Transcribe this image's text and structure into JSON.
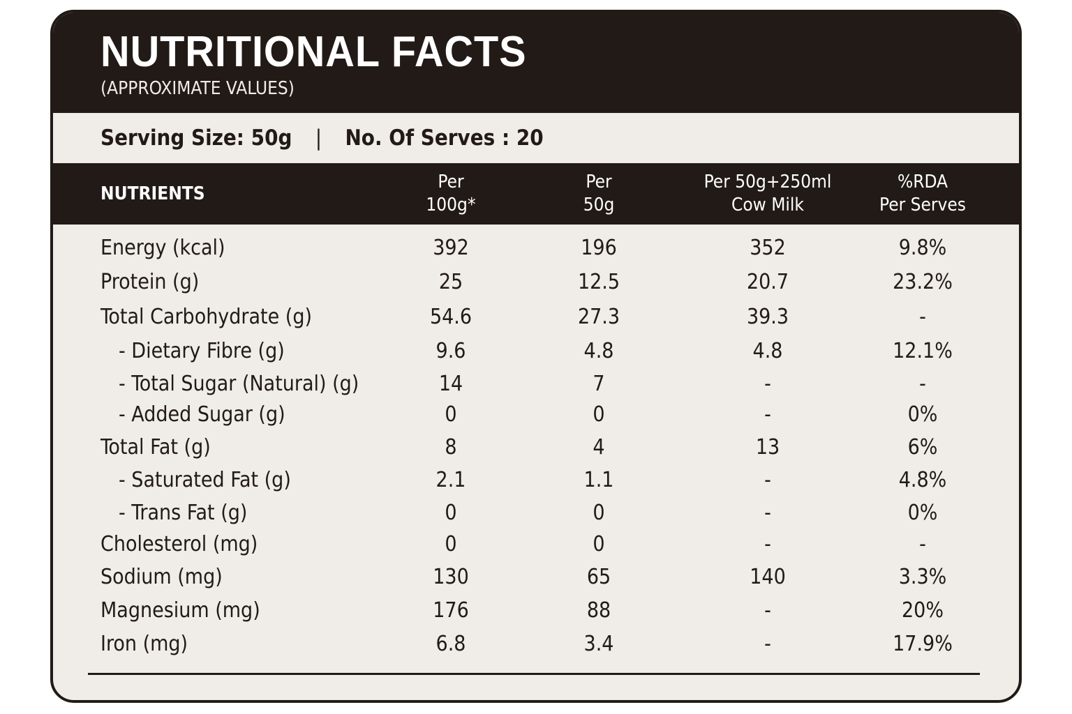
{
  "title": "NUTRITIONAL FACTS",
  "subtitle": "(APPROXIMATE VALUES)",
  "serving": {
    "size": "Serving Size: 50g",
    "separator": "|",
    "serves": "No. Of Serves : 20"
  },
  "columns": [
    {
      "line1": "NUTRIENTS",
      "line2": ""
    },
    {
      "line1": "Per",
      "line2": "100g*"
    },
    {
      "line1": "Per",
      "line2": "50g"
    },
    {
      "line1": "Per 50g+250ml",
      "line2": "Cow Milk"
    },
    {
      "line1": "%RDA",
      "line2": "Per Serves"
    }
  ],
  "rows": [
    {
      "name": "Energy (kcal)",
      "sub": false,
      "per100": "392",
      "per50": "196",
      "milk": "352",
      "rda": "9.8%"
    },
    {
      "name": "Protein (g)",
      "sub": false,
      "per100": "25",
      "per50": "12.5",
      "milk": "20.7",
      "rda": "23.2%"
    },
    {
      "name": "Total Carbohydrate (g)",
      "sub": false,
      "per100": "54.6",
      "per50": "27.3",
      "milk": "39.3",
      "rda": "-"
    },
    {
      "name": "- Dietary Fibre (g)",
      "sub": true,
      "per100": "9.6",
      "per50": "4.8",
      "milk": "4.8",
      "rda": "12.1%"
    },
    {
      "name": "- Total Sugar (Natural) (g)",
      "sub": true,
      "per100": "14",
      "per50": "7",
      "milk": "-",
      "rda": "-"
    },
    {
      "name": "- Added Sugar (g)",
      "sub": true,
      "per100": "0",
      "per50": "0",
      "milk": "-",
      "rda": "0%"
    },
    {
      "name": "Total Fat (g)",
      "sub": false,
      "per100": "8",
      "per50": "4",
      "milk": "13",
      "rda": "6%"
    },
    {
      "name": "- Saturated Fat (g)",
      "sub": true,
      "per100": "2.1",
      "per50": "1.1",
      "milk": "-",
      "rda": "4.8%"
    },
    {
      "name": "- Trans Fat (g)",
      "sub": true,
      "per100": "0",
      "per50": "0",
      "milk": "-",
      "rda": "0%"
    },
    {
      "name": "Cholesterol (mg)",
      "sub": false,
      "per100": "0",
      "per50": "0",
      "milk": "-",
      "rda": "-"
    },
    {
      "name": "Sodium (mg)",
      "sub": false,
      "per100": "130",
      "per50": "65",
      "milk": "140",
      "rda": "3.3%"
    },
    {
      "name": "Magnesium (mg)",
      "sub": false,
      "per100": "176",
      "per50": "88",
      "milk": "-",
      "rda": "20%"
    },
    {
      "name": "Iron (mg)",
      "sub": false,
      "per100": "6.8",
      "per50": "3.4",
      "milk": "-",
      "rda": "17.9%"
    }
  ],
  "colors": {
    "dark": "#221a16",
    "light": "#f0ece7"
  }
}
